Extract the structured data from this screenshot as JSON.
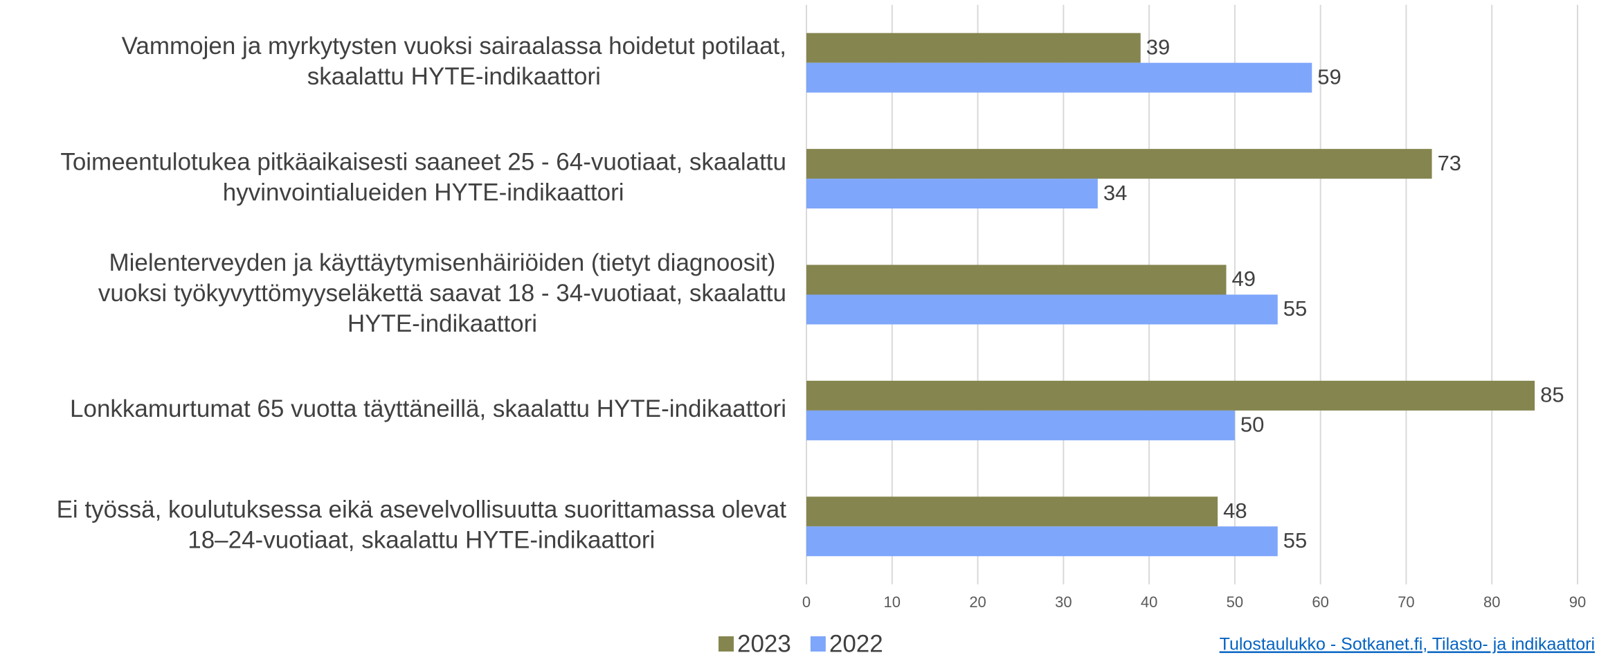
{
  "chart_data": {
    "type": "bar",
    "orientation": "horizontal",
    "categories": [
      [
        "Vammojen ja myrkytysten vuoksi sairaalassa hoidetut potilaat,",
        "skaalattu HYTE-indikaattori"
      ],
      [
        "Toimeentulotukea pitkäaikaisesti saaneet 25 - 64-vuotiaat, skaalattu",
        "hyvinvointialueiden HYTE-indikaattori"
      ],
      [
        "Mielenterveyden ja käyttäytymisenhäiriöiden (tietyt diagnoosit)",
        "vuoksi työkyvyttömyyseläkettä saavat 18 - 34-vuotiaat, skaalattu",
        "HYTE-indikaattori"
      ],
      [
        "Lonkkamurtumat 65 vuotta täyttäneillä, skaalattu HYTE-indikaattori"
      ],
      [
        "Ei työssä, koulutuksessa eikä asevelvollisuutta suorittamassa olevat",
        "18–24-vuotiaat, skaalattu HYTE-indikaattori"
      ]
    ],
    "series": [
      {
        "name": "2023",
        "color": "#85864f",
        "values": [
          39,
          73,
          49,
          85,
          48
        ]
      },
      {
        "name": "2022",
        "color": "#7ea6fa",
        "values": [
          59,
          34,
          55,
          50,
          55
        ]
      }
    ],
    "xlim": [
      0,
      90
    ],
    "xticks": [
      0,
      10,
      20,
      30,
      40,
      50,
      60,
      70,
      80,
      90
    ],
    "grid": true,
    "legend": "bottom",
    "source_link": "Tulostaulukko - Sotkanet.fi, Tilasto- ja indikaattori"
  }
}
